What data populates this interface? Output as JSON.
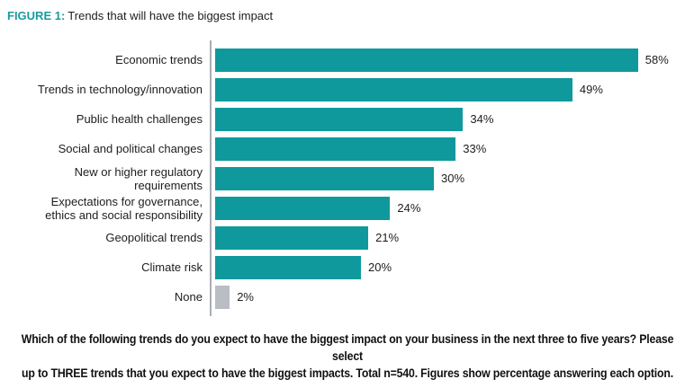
{
  "title": {
    "label": "FIGURE 1:",
    "text": "Trends that will have the biggest impact"
  },
  "colors": {
    "bar_teal": "#0f999c",
    "bar_gray": "#b9bdc4",
    "accent": "#1a9ba0",
    "axis": "#a9adb5",
    "text": "#1d1d1b"
  },
  "chart_data": {
    "type": "bar",
    "orientation": "horizontal",
    "title": "Trends that will have the biggest impact",
    "xlabel": "",
    "ylabel": "",
    "unit": "%",
    "xlim": [
      0,
      65
    ],
    "grid": false,
    "legend": "none",
    "categories": [
      "Economic trends",
      "Trends in technology/innovation",
      "Public health challenges",
      "Social and political changes",
      "New or higher regulatory\nrequirements",
      "Expectations for governance,\nethics and social responsibility",
      "Geopolitical trends",
      "Climate risk",
      "None"
    ],
    "values": [
      58,
      49,
      34,
      33,
      30,
      24,
      21,
      20,
      2
    ],
    "value_labels": [
      "58%",
      "49%",
      "34%",
      "33%",
      "30%",
      "24%",
      "21%",
      "20%",
      "2%"
    ],
    "bar_colors": [
      "#0f999c",
      "#0f999c",
      "#0f999c",
      "#0f999c",
      "#0f999c",
      "#0f999c",
      "#0f999c",
      "#0f999c",
      "#b9bdc4"
    ]
  },
  "caption": "Which of the following trends do you expect to have the biggest impact on your business in the next three to five years? Please select\nup to THREE trends that you expect to have the biggest impacts. Total n=540. Figures show percentage answering each option."
}
